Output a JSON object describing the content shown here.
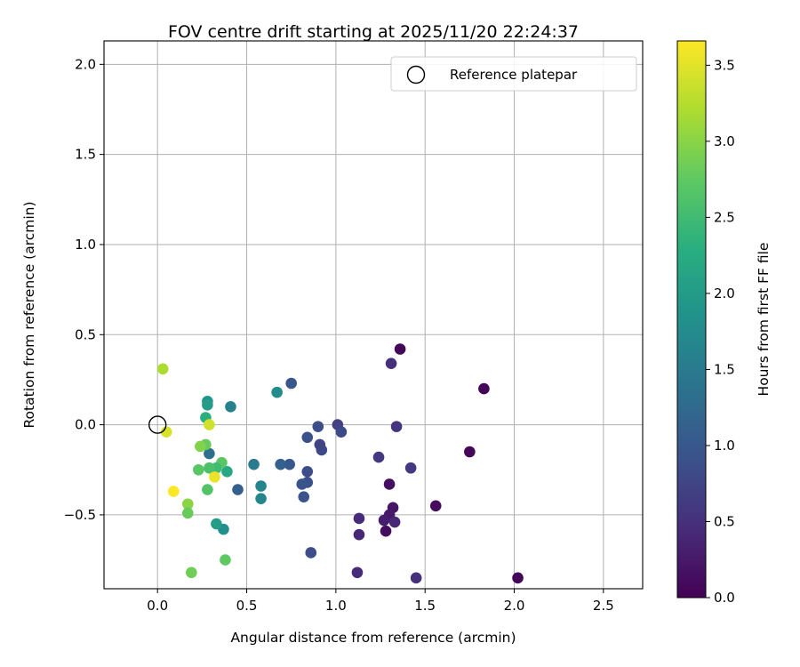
{
  "chart_data": {
    "type": "scatter",
    "title": "FOV centre drift starting at 2025/11/20 22:24:37",
    "xlabel": "Angular distance from reference (arcmin)",
    "ylabel": "Rotation from reference (arcmin)",
    "xlim": [
      -0.3,
      2.72
    ],
    "ylim": [
      -0.91,
      2.13
    ],
    "xticks": [
      0.0,
      0.5,
      1.0,
      1.5,
      2.0,
      2.5
    ],
    "xtick_labels": [
      "0.0",
      "0.5",
      "1.0",
      "1.5",
      "2.0",
      "2.5"
    ],
    "yticks": [
      -0.5,
      0.0,
      0.5,
      1.0,
      1.5,
      2.0
    ],
    "ytick_labels": [
      "−0.5",
      "0.0",
      "0.5",
      "1.0",
      "1.5",
      "2.0"
    ],
    "grid": true,
    "legend": {
      "position": "top-right",
      "entries": [
        {
          "label": "Reference platepar",
          "marker": "open-circle"
        }
      ]
    },
    "reference_point": {
      "x": 0.0,
      "y": 0.0
    },
    "colorbar": {
      "label": "Hours from first FF file",
      "colormap": "viridis",
      "range": [
        0.0,
        3.66
      ],
      "ticks": [
        0.0,
        0.5,
        1.0,
        1.5,
        2.0,
        2.5,
        3.0,
        3.5
      ],
      "tick_labels": [
        "0.0",
        "0.5",
        "1.0",
        "1.5",
        "2.0",
        "2.5",
        "3.0",
        "3.5"
      ]
    },
    "points": [
      {
        "x": 1.36,
        "y": 0.42,
        "t": 0.05
      },
      {
        "x": 1.83,
        "y": 0.2,
        "t": 0.05
      },
      {
        "x": 1.75,
        "y": -0.15,
        "t": 0.06
      },
      {
        "x": 2.02,
        "y": -0.85,
        "t": 0.05
      },
      {
        "x": 1.56,
        "y": -0.45,
        "t": 0.1
      },
      {
        "x": 1.32,
        "y": -0.46,
        "t": 0.2
      },
      {
        "x": 1.3,
        "y": -0.33,
        "t": 0.15
      },
      {
        "x": 1.28,
        "y": -0.59,
        "t": 0.12
      },
      {
        "x": 1.3,
        "y": -0.5,
        "t": 0.25
      },
      {
        "x": 1.27,
        "y": -0.53,
        "t": 0.3
      },
      {
        "x": 1.33,
        "y": -0.54,
        "t": 0.4
      },
      {
        "x": 1.31,
        "y": 0.34,
        "t": 0.5
      },
      {
        "x": 1.34,
        "y": -0.01,
        "t": 0.55
      },
      {
        "x": 1.42,
        "y": -0.24,
        "t": 0.6
      },
      {
        "x": 1.45,
        "y": -0.85,
        "t": 0.5
      },
      {
        "x": 1.24,
        "y": -0.18,
        "t": 0.6
      },
      {
        "x": 1.13,
        "y": -0.52,
        "t": 0.45
      },
      {
        "x": 1.13,
        "y": -0.61,
        "t": 0.4
      },
      {
        "x": 1.12,
        "y": -0.82,
        "t": 0.45
      },
      {
        "x": 1.01,
        "y": 0.0,
        "t": 0.7
      },
      {
        "x": 1.03,
        "y": -0.04,
        "t": 0.8
      },
      {
        "x": 0.92,
        "y": -0.14,
        "t": 0.8
      },
      {
        "x": 0.91,
        "y": -0.11,
        "t": 0.75
      },
      {
        "x": 0.9,
        "y": -0.01,
        "t": 0.85
      },
      {
        "x": 0.84,
        "y": -0.07,
        "t": 0.9
      },
      {
        "x": 0.84,
        "y": -0.26,
        "t": 0.85
      },
      {
        "x": 0.84,
        "y": -0.32,
        "t": 0.9
      },
      {
        "x": 0.81,
        "y": -0.33,
        "t": 0.95
      },
      {
        "x": 0.82,
        "y": -0.4,
        "t": 0.95
      },
      {
        "x": 0.86,
        "y": -0.71,
        "t": 0.85
      },
      {
        "x": 0.75,
        "y": 0.23,
        "t": 1.0
      },
      {
        "x": 0.74,
        "y": -0.22,
        "t": 1.0
      },
      {
        "x": 0.69,
        "y": -0.22,
        "t": 1.1
      },
      {
        "x": 0.67,
        "y": 0.18,
        "t": 1.75
      },
      {
        "x": 0.45,
        "y": -0.36,
        "t": 1.1
      },
      {
        "x": 0.54,
        "y": -0.22,
        "t": 1.5
      },
      {
        "x": 0.58,
        "y": -0.34,
        "t": 1.65
      },
      {
        "x": 0.58,
        "y": -0.41,
        "t": 1.65
      },
      {
        "x": 0.41,
        "y": 0.1,
        "t": 1.6
      },
      {
        "x": 0.29,
        "y": -0.16,
        "t": 1.35
      },
      {
        "x": 0.28,
        "y": 0.13,
        "t": 1.9
      },
      {
        "x": 0.28,
        "y": 0.11,
        "t": 2.0
      },
      {
        "x": 0.27,
        "y": 0.04,
        "t": 2.3
      },
      {
        "x": 0.37,
        "y": -0.58,
        "t": 1.8
      },
      {
        "x": 0.33,
        "y": -0.55,
        "t": 2.0
      },
      {
        "x": 0.39,
        "y": -0.26,
        "t": 2.2
      },
      {
        "x": 0.36,
        "y": -0.21,
        "t": 2.7
      },
      {
        "x": 0.33,
        "y": -0.24,
        "t": 2.5
      },
      {
        "x": 0.29,
        "y": -0.24,
        "t": 2.6
      },
      {
        "x": 0.28,
        "y": -0.36,
        "t": 2.65
      },
      {
        "x": 0.27,
        "y": -0.11,
        "t": 2.8
      },
      {
        "x": 0.24,
        "y": -0.12,
        "t": 2.95
      },
      {
        "x": 0.23,
        "y": -0.25,
        "t": 2.7
      },
      {
        "x": 0.38,
        "y": -0.75,
        "t": 2.75
      },
      {
        "x": 0.17,
        "y": -0.44,
        "t": 3.0
      },
      {
        "x": 0.17,
        "y": -0.49,
        "t": 2.8
      },
      {
        "x": 0.19,
        "y": -0.82,
        "t": 2.85
      },
      {
        "x": 0.32,
        "y": -0.29,
        "t": 3.55
      },
      {
        "x": 0.29,
        "y": 0.0,
        "t": 3.4
      },
      {
        "x": 0.09,
        "y": -0.37,
        "t": 3.65
      },
      {
        "x": 0.05,
        "y": -0.04,
        "t": 3.45
      },
      {
        "x": 0.03,
        "y": 0.31,
        "t": 3.2
      }
    ]
  }
}
